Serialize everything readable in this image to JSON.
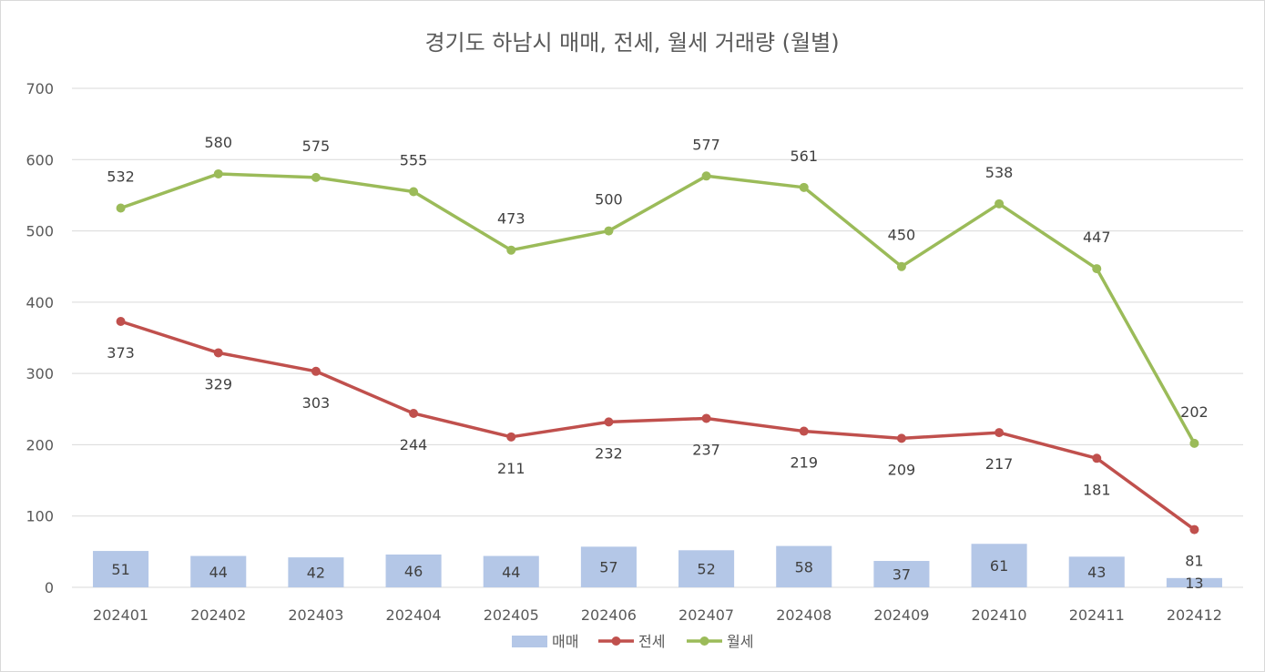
{
  "chart_data": {
    "type": "bar+line",
    "title": "경기도 하남시 매매, 전세, 월세 거래량 (월별)",
    "categories": [
      "202401",
      "202402",
      "202403",
      "202404",
      "202405",
      "202406",
      "202407",
      "202408",
      "202409",
      "202410",
      "202411",
      "202412"
    ],
    "ylim": [
      0,
      700
    ],
    "yticks": [
      "0",
      "100",
      "200",
      "300",
      "400",
      "500",
      "600",
      "700"
    ],
    "grid": true,
    "legend_position": "bottom",
    "series": [
      {
        "name": "매매",
        "type": "bar",
        "color": "#b4c7e7",
        "values": [
          51,
          44,
          42,
          46,
          44,
          57,
          52,
          58,
          37,
          61,
          43,
          13
        ]
      },
      {
        "name": "전세",
        "type": "line",
        "color": "#c0504d",
        "values": [
          373,
          329,
          303,
          244,
          211,
          232,
          237,
          219,
          209,
          217,
          181,
          81
        ]
      },
      {
        "name": "월세",
        "type": "line",
        "color": "#9bbb59",
        "values": [
          532,
          580,
          575,
          555,
          473,
          500,
          577,
          561,
          450,
          538,
          447,
          202
        ]
      }
    ]
  }
}
